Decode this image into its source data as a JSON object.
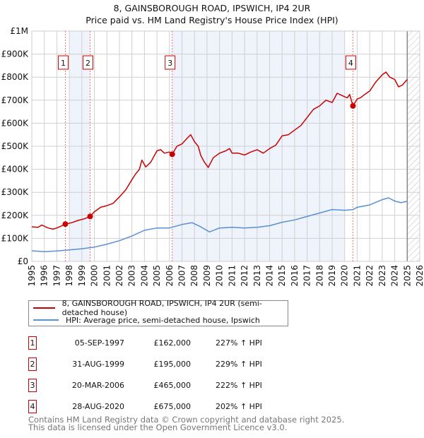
{
  "chart_data": {
    "type": "line",
    "title": "8, GAINSBOROUGH ROAD, IPSWICH, IP4 2UR",
    "subtitle": "Price paid vs. HM Land Registry's House Price Index (HPI)",
    "xlim": [
      1995,
      2026
    ],
    "ylim": [
      0,
      1000000
    ],
    "x_ticks": [
      1995,
      1996,
      1997,
      1998,
      1999,
      2000,
      2001,
      2002,
      2003,
      2004,
      2005,
      2006,
      2007,
      2008,
      2009,
      2010,
      2011,
      2012,
      2013,
      2014,
      2015,
      2016,
      2017,
      2018,
      2019,
      2020,
      2021,
      2022,
      2023,
      2024,
      2025,
      2026
    ],
    "y_ticks": [
      {
        "value": 0,
        "label": "£0"
      },
      {
        "value": 100000,
        "label": "£100K"
      },
      {
        "value": 200000,
        "label": "£200K"
      },
      {
        "value": 300000,
        "label": "£300K"
      },
      {
        "value": 400000,
        "label": "£400K"
      },
      {
        "value": 500000,
        "label": "£500K"
      },
      {
        "value": 600000,
        "label": "£600K"
      },
      {
        "value": 700000,
        "label": "£700K"
      },
      {
        "value": 800000,
        "label": "£800K"
      },
      {
        "value": 900000,
        "label": "£900K"
      },
      {
        "value": 1000000,
        "label": "£1M"
      }
    ],
    "grid": true,
    "shaded_periods": [
      [
        1998.0,
        1999.66
      ],
      [
        2006.22,
        2020.0
      ]
    ],
    "forecast_hatch_from": 2025.0,
    "series": [
      {
        "name": "8, GAINSBOROUGH ROAD, IPSWICH, IP4 2UR (semi-detached house)",
        "color": "#cc0000",
        "points": [
          [
            1995.0,
            150
          ],
          [
            1995.5,
            148
          ],
          [
            1995.8,
            158
          ],
          [
            1996.3,
            145
          ],
          [
            1996.7,
            140
          ],
          [
            1997.0,
            145
          ],
          [
            1997.3,
            152
          ],
          [
            1997.68,
            162
          ],
          [
            1998.2,
            168
          ],
          [
            1998.7,
            178
          ],
          [
            1999.2,
            185
          ],
          [
            1999.66,
            195
          ],
          [
            2000.0,
            215
          ],
          [
            2000.5,
            235
          ],
          [
            2001.0,
            242
          ],
          [
            2001.5,
            252
          ],
          [
            2002.0,
            280
          ],
          [
            2002.5,
            310
          ],
          [
            2003.0,
            355
          ],
          [
            2003.3,
            380
          ],
          [
            2003.6,
            400
          ],
          [
            2003.8,
            440
          ],
          [
            2004.1,
            410
          ],
          [
            2004.5,
            430
          ],
          [
            2005.0,
            480
          ],
          [
            2005.3,
            485
          ],
          [
            2005.6,
            470
          ],
          [
            2006.0,
            475
          ],
          [
            2006.22,
            465
          ],
          [
            2006.6,
            500
          ],
          [
            2007.0,
            510
          ],
          [
            2007.5,
            540
          ],
          [
            2007.7,
            550
          ],
          [
            2008.0,
            520
          ],
          [
            2008.3,
            500
          ],
          [
            2008.5,
            460
          ],
          [
            2008.8,
            430
          ],
          [
            2009.1,
            408
          ],
          [
            2009.5,
            450
          ],
          [
            2010.0,
            470
          ],
          [
            2010.5,
            480
          ],
          [
            2010.8,
            490
          ],
          [
            2011.0,
            470
          ],
          [
            2011.5,
            470
          ],
          [
            2012.0,
            462
          ],
          [
            2012.5,
            475
          ],
          [
            2013.0,
            485
          ],
          [
            2013.5,
            470
          ],
          [
            2014.0,
            490
          ],
          [
            2014.5,
            505
          ],
          [
            2015.0,
            545
          ],
          [
            2015.5,
            550
          ],
          [
            2016.0,
            570
          ],
          [
            2016.5,
            590
          ],
          [
            2017.0,
            625
          ],
          [
            2017.5,
            660
          ],
          [
            2018.0,
            675
          ],
          [
            2018.5,
            700
          ],
          [
            2019.0,
            690
          ],
          [
            2019.4,
            730
          ],
          [
            2019.8,
            720
          ],
          [
            2020.2,
            710
          ],
          [
            2020.4,
            725
          ],
          [
            2020.66,
            675
          ],
          [
            2021.0,
            705
          ],
          [
            2021.3,
            712
          ],
          [
            2021.6,
            725
          ],
          [
            2022.0,
            740
          ],
          [
            2022.5,
            780
          ],
          [
            2023.0,
            810
          ],
          [
            2023.3,
            822
          ],
          [
            2023.6,
            800
          ],
          [
            2024.0,
            790
          ],
          [
            2024.3,
            758
          ],
          [
            2024.6,
            765
          ],
          [
            2025.0,
            790
          ]
        ]
      },
      {
        "name": "HPI: Average price, semi-detached house, Ipswich",
        "color": "#5b8fd4",
        "points": [
          [
            1995.0,
            46
          ],
          [
            1996.0,
            42
          ],
          [
            1997.0,
            45
          ],
          [
            1998.0,
            50
          ],
          [
            1999.0,
            55
          ],
          [
            2000.0,
            62
          ],
          [
            2001.0,
            75
          ],
          [
            2002.0,
            90
          ],
          [
            2003.0,
            110
          ],
          [
            2004.0,
            135
          ],
          [
            2005.0,
            145
          ],
          [
            2006.0,
            145
          ],
          [
            2007.0,
            160
          ],
          [
            2007.8,
            168
          ],
          [
            2008.5,
            150
          ],
          [
            2009.2,
            128
          ],
          [
            2010.0,
            145
          ],
          [
            2011.0,
            148
          ],
          [
            2012.0,
            145
          ],
          [
            2013.0,
            148
          ],
          [
            2014.0,
            155
          ],
          [
            2015.0,
            170
          ],
          [
            2016.0,
            180
          ],
          [
            2017.0,
            195
          ],
          [
            2018.0,
            210
          ],
          [
            2019.0,
            225
          ],
          [
            2020.0,
            222
          ],
          [
            2020.66,
            225
          ],
          [
            2021.0,
            235
          ],
          [
            2022.0,
            245
          ],
          [
            2023.0,
            268
          ],
          [
            2023.5,
            276
          ],
          [
            2024.0,
            262
          ],
          [
            2024.5,
            255
          ],
          [
            2025.0,
            261
          ]
        ]
      }
    ],
    "y_units_of_points": "thousands GBP",
    "sales": [
      {
        "num": "1",
        "x": 1997.68,
        "value": 162,
        "date": "05-SEP-1997",
        "price": "£162,000",
        "hpi": "227% ↑ HPI"
      },
      {
        "num": "2",
        "x": 1999.66,
        "value": 195,
        "date": "31-AUG-1999",
        "price": "£195,000",
        "hpi": "229% ↑ HPI"
      },
      {
        "num": "3",
        "x": 2006.22,
        "value": 465,
        "date": "20-MAR-2006",
        "price": "£465,000",
        "hpi": "222% ↑ HPI"
      },
      {
        "num": "4",
        "x": 2020.66,
        "value": 675,
        "date": "28-AUG-2020",
        "price": "£675,000",
        "hpi": "202% ↑ HPI"
      }
    ],
    "legend_placement": "below"
  },
  "footer": {
    "line1": "Contains HM Land Registry data © Crown copyright and database right 2025.",
    "line2": "This data is licensed under the Open Government Licence v3.0."
  }
}
